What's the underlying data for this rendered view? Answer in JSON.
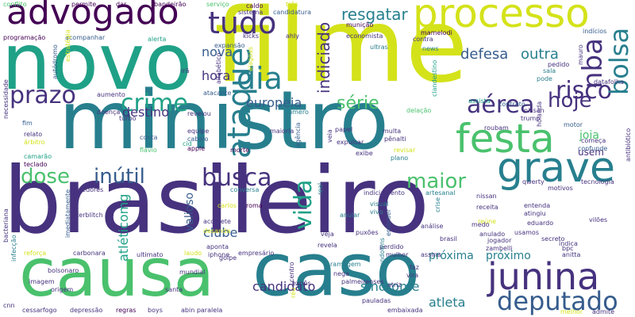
{
  "words": {
    "brasileiro": "brasileiro",
    "filme": "filme",
    "ministro": "ministro",
    "novo": "novo",
    "caso": "caso",
    "causa": "causa",
    "advogado": "advogado",
    "processo": "processo",
    "festa": "festa",
    "grave": "grave",
    "junina": "junina",
    "deputado": "deputado",
    "tudo": "tudo",
    "dia": "dia",
    "ataque": "ataque",
    "prazo": "prazo",
    "crime": "crime",
    "risco": "risco",
    "hoje": "hoje",
    "aerea": "aérea",
    "nba": "nba",
    "bolsa": "bolsa",
    "resgatar": "resgatar",
    "defesa": "defesa",
    "outra": "outra",
    "nova": "nova",
    "hora": "hora",
    "indiciado": "indiciado",
    "europeia": "europeia",
    "serie": "série",
    "destino": "destino",
    "dose": "dose",
    "inutil": "inútil",
    "busca": "busca",
    "maior": "maior",
    "vida": "vida",
    "clube": "clube",
    "valioso": "valioso",
    "atleticomg": "atléticomg",
    "candidato": "candidato",
    "sindrome": "síndrome",
    "atleta": "atleta",
    "proxima": "próxima",
    "proximo": "próximo",
    "joia": "joia",
    "usem": "usem",
    "conflito": "conflito",
    "permite": "permite",
    "dar": "dar",
    "bandeirao": "bandeirão",
    "servico": "serviço",
    "caldo": "caldo",
    "tres": "três",
    "sistema": "sistema",
    "candidatura": "candidatura",
    "programacao": "programação",
    "acompanhar": "acompanhar",
    "kicks": "kicks",
    "ahly": "ahly",
    "municao": "munição",
    "mamelodi": "mamelodi",
    "indicios": "indícios",
    "economista": "economista",
    "contra": "contra",
    "pedido": "pedido",
    "ultras": "ultras",
    "news": "news",
    "alerta": "alerta",
    "expansao": "expansão",
    "autodromo": "autódromo",
    "alfabetico": "alfabético",
    "alagoas": "alagoas",
    "ira": "irã",
    "mauro": "mauro",
    "datafolha": "datafolha",
    "pode": "pode",
    "sala": "sala",
    "clandestino": "clandestino",
    "estrategia": "estratégia",
    "aumento": "aumento",
    "atacante": "atacante",
    "assista": "assista",
    "contrato": "contrato",
    "turbo": "turbo",
    "doenca": "doença",
    "revelou": "revelou",
    "numero": "número",
    "delacao": "delação",
    "nissan": "nissan",
    "trump": "trump",
    "motor": "motor",
    "necessidade": "necessidade",
    "fim": "fim",
    "relato": "relato",
    "arbitro": "árbitro",
    "camarao": "camarão",
    "teclado": "teclado",
    "conta": "conta",
    "flavio": "flávio",
    "cid": "cid",
    "equipe": "equipe",
    "cabelo": "cabelo",
    "apple": "apple",
    "maioria": "maioria",
    "papel": "papel",
    "multa": "multa",
    "penalti": "pênalti",
    "roubam": "roubam",
    "holanda": "holanda",
    "confunde": "confunde",
    "comeca": "começa",
    "morte": "morte",
    "expulsar": "expulsar",
    "exibe": "exibe",
    "revisar": "revisar",
    "veia": "veia",
    "agencia": "agência",
    "conversa": "conversa",
    "plano": "plano",
    "arredores": "arredores",
    "tecnologia": "tecnologia",
    "antibiotico": "antibiótico",
    "indiciamento": "indiciamento",
    "artesanal": "artesanal",
    "qwerty": "qwerty",
    "anular": "anular",
    "real": "real",
    "visual": "visual",
    "vivo": "vivo",
    "receita": "receita",
    "motivos": "motivos",
    "sterblitch": "sterblitch",
    "roma": "roma",
    "veja": "veja",
    "puxoes": "puxões",
    "brasil": "brasil",
    "anulado": "anulado",
    "crise": "crise",
    "reune": "reúne",
    "entenda": "entenda",
    "atingiu": "atingiu",
    "eduardo": "eduardo",
    "usamos": "usamos",
    "viloes": "vilões",
    "money": "money",
    "acomete": "acomete",
    "desanda": "desanda",
    "revela": "revela",
    "embraer": "embraer",
    "analise": "análise",
    "medo": "medo",
    "jogador": "jogador",
    "imediatamente": "imediatamente",
    "carlos": "carlos",
    "aponta": "aponta",
    "golpe": "golpe",
    "perdido": "perdido",
    "assina": "assina",
    "bacteriana": "bacteriana",
    "reforca": "reforça",
    "carbonara": "carbonara",
    "ultimato": "ultimato",
    "laudo": "laudo",
    "iphone": "iphone",
    "empresario": "empresário",
    "sundowns": "sundowns",
    "secreto": "secreto",
    "bpc": "bpc",
    "zambelli": "zambelli",
    "infeccao": "infecção",
    "imagem": "imagem",
    "bolsonaro": "bolsonaro",
    "mundial": "mundial",
    "ramagem": "ramagem",
    "nega": "nega",
    "mulher": "mulher",
    "faz": "faz",
    "centro": "centro",
    "origem": "origem",
    "santa": "santa",
    "expos": "expôs",
    "palmeirenses": "palmeirenses",
    "vira": "vira",
    "atriz": "atriz",
    "anitta": "anitta",
    "reu": "réu",
    "cnn": "cnn",
    "cessarfogo": "cessarfogo",
    "depressao": "depressão",
    "regras": "regras",
    "boys": "boys",
    "abinparalela": "abin paralela",
    "pauladas": "pauladas",
    "embaixada": "embaixada",
    "melhor": "melhor",
    "admite": "admite",
    "indica": "indica"
  }
}
